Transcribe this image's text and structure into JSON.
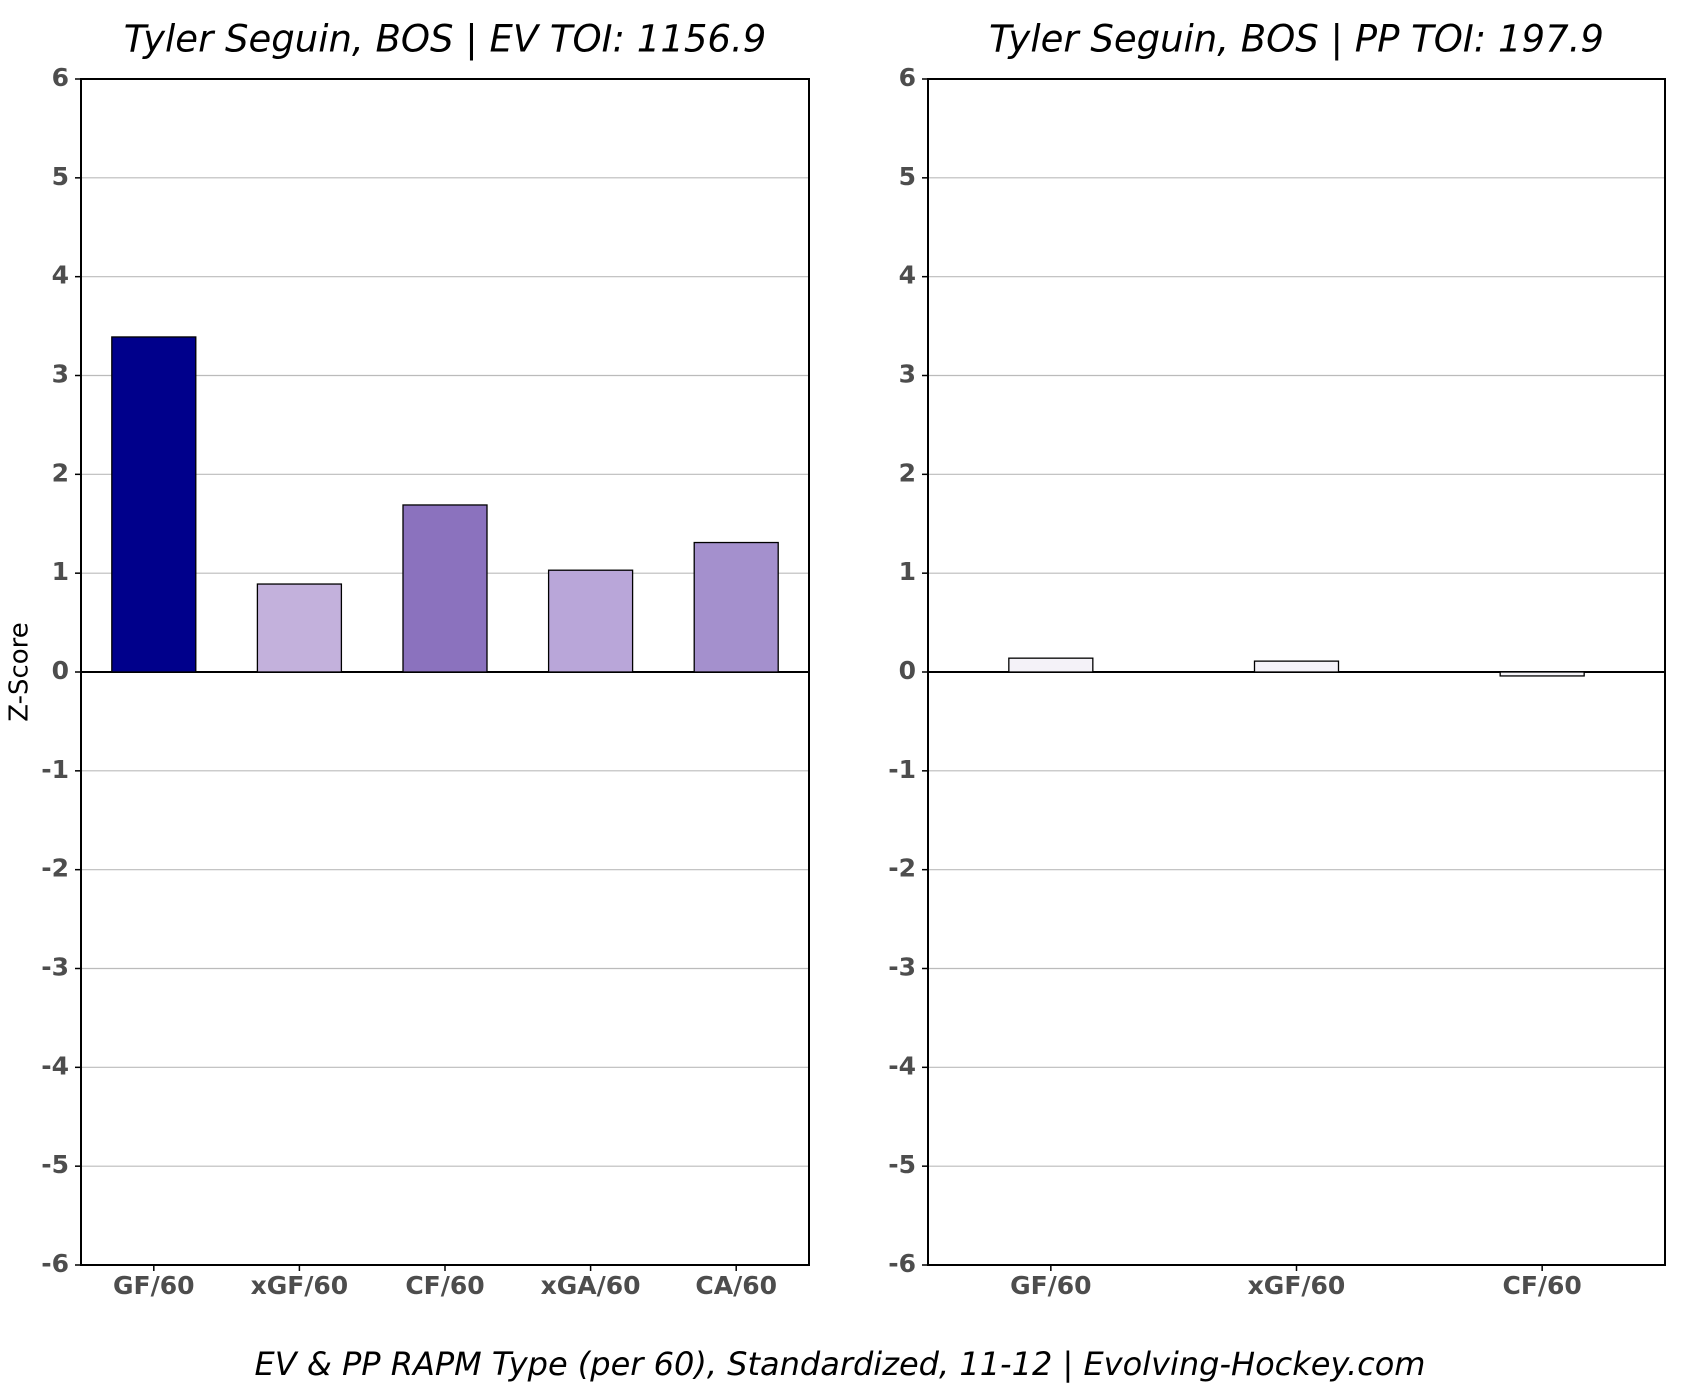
{
  "chart_data": [
    {
      "type": "bar",
      "title": "Tyler Seguin, BOS  |  EV TOI: 1156.9",
      "ylabel": "Z-Score",
      "categories": [
        "GF/60",
        "xGF/60",
        "CF/60",
        "xGA/60",
        "CA/60"
      ],
      "values": [
        3.39,
        0.89,
        1.69,
        1.03,
        1.31
      ],
      "colors": [
        "#00008b",
        "#c3b1dc",
        "#8b72be",
        "#b9a6d9",
        "#a490cd"
      ],
      "ylim": [
        -6,
        6
      ],
      "yticks": [
        -6,
        -5,
        -4,
        -3,
        -2,
        -1,
        0,
        1,
        2,
        3,
        4,
        5,
        6
      ],
      "grid": true
    },
    {
      "type": "bar",
      "title": "Tyler Seguin, BOS  |  PP TOI: 197.9",
      "categories": [
        "GF/60",
        "xGF/60",
        "CF/60"
      ],
      "values": [
        0.14,
        0.11,
        -0.04
      ],
      "colors": [
        "#f4f2f8",
        "#f4f2f8",
        "#f6f5f9"
      ],
      "ylim": [
        -6,
        6
      ],
      "yticks": [
        -6,
        -5,
        -4,
        -3,
        -2,
        -1,
        0,
        1,
        2,
        3,
        4,
        5,
        6
      ],
      "grid": true
    }
  ],
  "caption": "EV & PP RAPM Type (per 60), Standardized, 11-12    |    Evolving-Hockey.com"
}
